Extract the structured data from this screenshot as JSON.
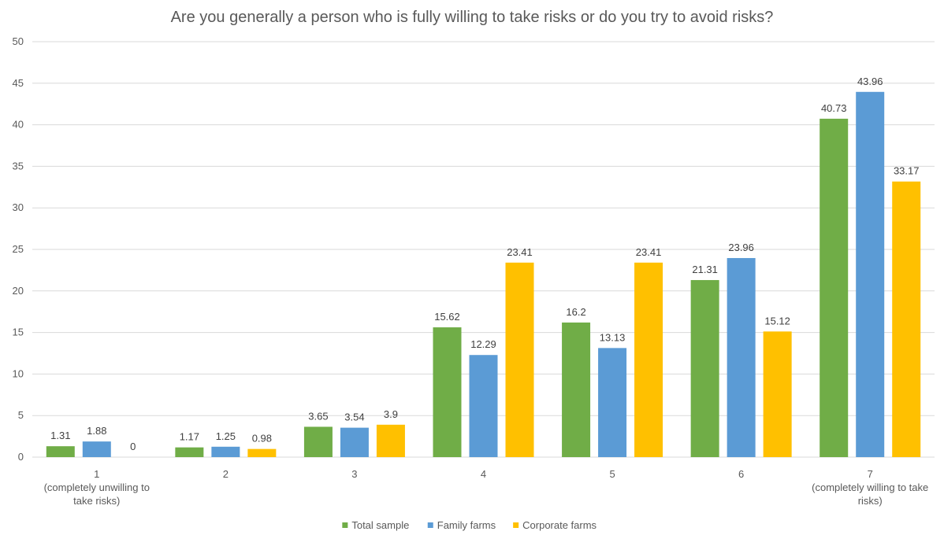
{
  "chart_data": {
    "type": "bar",
    "title": "Are you generally a person who is fully willing to take risks or do you try to avoid risks?",
    "categories": [
      [
        "1",
        "(completely unwilling to",
        "take risks)"
      ],
      [
        "2"
      ],
      [
        "3"
      ],
      [
        "4"
      ],
      [
        "5"
      ],
      [
        "6"
      ],
      [
        "7",
        "(completely willing to take",
        "risks)"
      ]
    ],
    "series": [
      {
        "name": "Total sample",
        "color": "#70AD47",
        "values": [
          1.31,
          1.17,
          3.65,
          15.62,
          16.2,
          21.31,
          40.73
        ]
      },
      {
        "name": "Family farms",
        "color": "#5B9BD5",
        "values": [
          1.88,
          1.25,
          3.54,
          12.29,
          13.13,
          23.96,
          43.96
        ]
      },
      {
        "name": "Corporate farms",
        "color": "#FFC000",
        "values": [
          0,
          0.98,
          3.9,
          23.41,
          23.41,
          15.12,
          33.17
        ]
      }
    ],
    "ylim": [
      0,
      50
    ],
    "yticks": [
      0,
      5,
      10,
      15,
      20,
      25,
      30,
      35,
      40,
      45,
      50
    ],
    "grid": true,
    "legend_position": "bottom",
    "gridline_color": "#D9D9D9",
    "text_color": "#595959"
  }
}
